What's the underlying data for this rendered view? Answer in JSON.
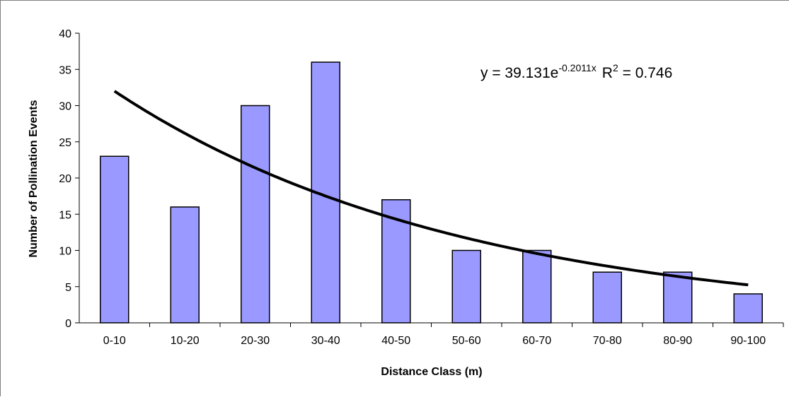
{
  "chart_data": {
    "type": "bar",
    "categories": [
      "0-10",
      "10-20",
      "20-30",
      "30-40",
      "40-50",
      "50-60",
      "60-70",
      "70-80",
      "80-90",
      "90-100"
    ],
    "values": [
      23,
      16,
      30,
      36,
      17,
      10,
      10,
      7,
      7,
      4
    ],
    "xlabel": "Distance Class (m)",
    "ylabel": "Number of Pollination Events",
    "ylim": [
      0,
      40
    ],
    "yticks": [
      0,
      5,
      10,
      15,
      20,
      25,
      30,
      35,
      40
    ],
    "grid": false,
    "legend": "none",
    "bar_color": "#9999ff",
    "bar_edge_color": "#000000",
    "trendline": {
      "type": "exponential",
      "a": 39.131,
      "b": -0.2011,
      "color": "#000000",
      "label_prefix": "y = 39.131e",
      "label_exponent": "-0.2011x",
      "r2_prefix": "R",
      "r2_exponent": "2",
      "r2_value": " = 0.746"
    }
  }
}
